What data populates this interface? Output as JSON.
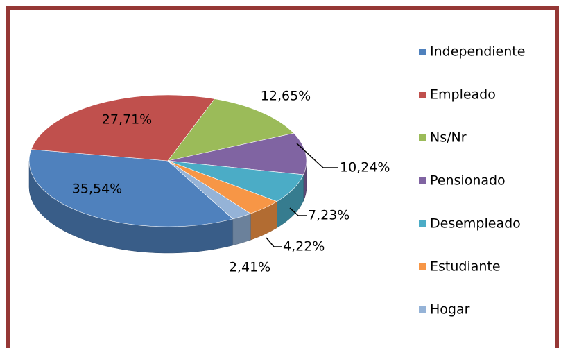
{
  "chart_data": {
    "type": "pie",
    "categories": [
      "Independiente",
      "Empleado",
      "Ns/Nr",
      "Pensionado",
      "Desempleado",
      "Estudiante",
      "Hogar"
    ],
    "values": [
      35.54,
      27.71,
      12.65,
      10.24,
      7.23,
      4.22,
      2.41
    ],
    "value_labels": [
      "35,54%",
      "27,71%",
      "12,65%",
      "10,24%",
      "7,23%",
      "4,22%",
      "2,41%"
    ],
    "colors": [
      "#4f81bd",
      "#c0504d",
      "#9bbb59",
      "#8064a2",
      "#4bacc6",
      "#f79646",
      "#95b3d7"
    ],
    "legend": "right"
  }
}
